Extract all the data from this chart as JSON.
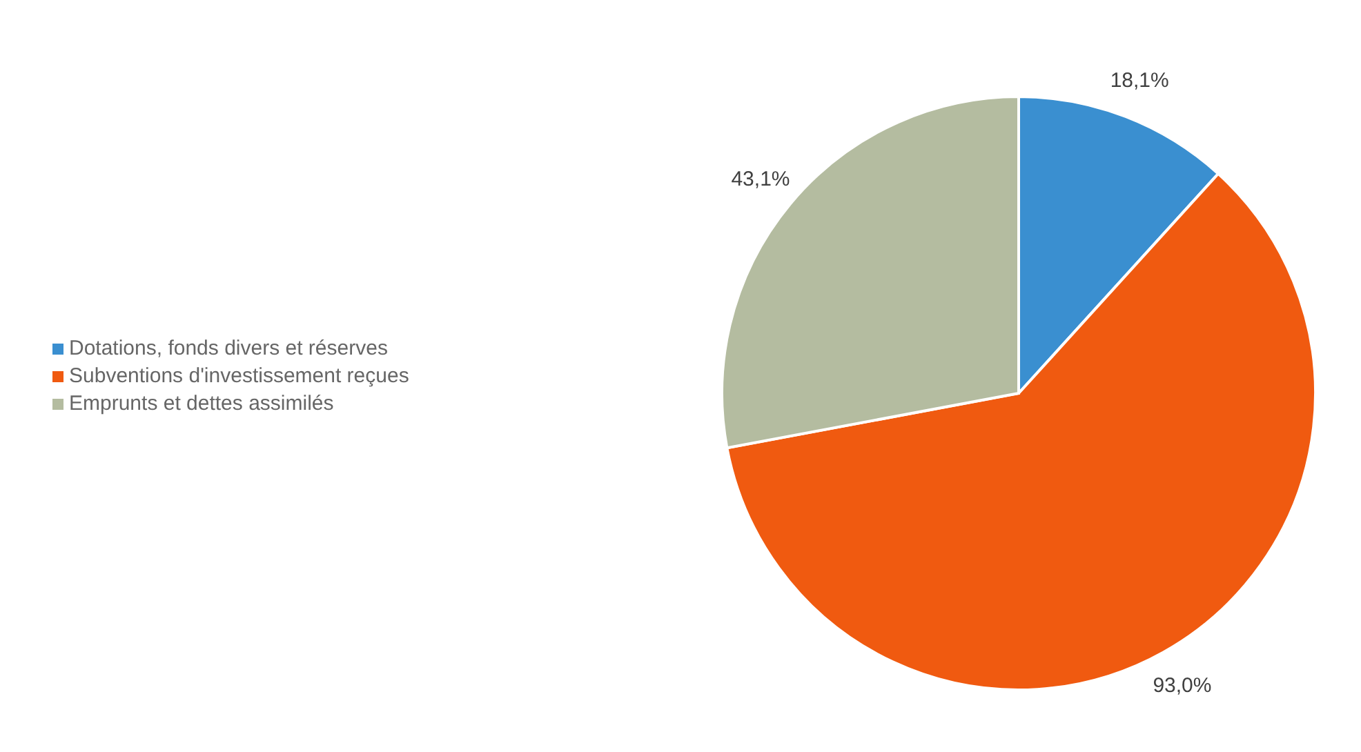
{
  "chart_data": {
    "type": "pie",
    "categories": [
      "Dotations, fonds divers et réserves",
      "Subventions d'investissement reçues",
      "Emprunts et dettes assimilés"
    ],
    "values": [
      18.1,
      93.0,
      43.1
    ],
    "value_labels": [
      "18,1%",
      "93,0%",
      "43,1%"
    ],
    "colors": [
      "#3a8fd0",
      "#f05a10",
      "#b4bca0"
    ],
    "legend": "left"
  }
}
